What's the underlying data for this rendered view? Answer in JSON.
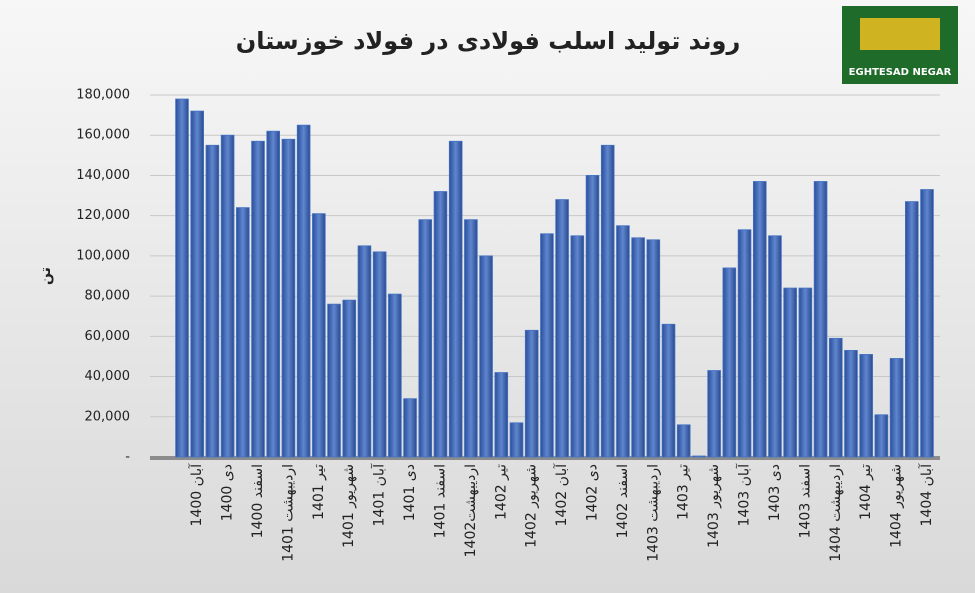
{
  "chart_data": {
    "type": "bar",
    "title": "روند تولید اسلب فولادی در فولاد خوزستان",
    "y_label": "تن",
    "logo": "EGHTESAD NEGAR",
    "categories": [
      null,
      "آبان 1400",
      null,
      "دی 1400",
      null,
      "اسفند 1400",
      null,
      "اردیبهشت 1401",
      null,
      "تیر 1401",
      null,
      "شهریور 1401",
      null,
      "آبان 1401",
      null,
      "دی 1401",
      null,
      "اسفند 1401",
      null,
      "اردیبهشت1402",
      null,
      "تیر 1402",
      null,
      "شهریور 1402",
      null,
      "آبان 1402",
      null,
      "دی 1402",
      null,
      "اسفند 1402",
      null,
      "اردیبهشت 1403",
      null,
      "تیر 1403",
      null,
      "شهریور 1403",
      null,
      "آبان 1403",
      null,
      "دی 1403",
      null,
      "اسفند 1403",
      null,
      "اردیبهشت 1404",
      null,
      "تیر 1404",
      null,
      "شهریور 1404",
      null,
      "آبان 1404"
    ],
    "values": [
      178000,
      172000,
      155000,
      160000,
      124000,
      157000,
      162000,
      158000,
      165000,
      121000,
      76000,
      78000,
      105000,
      102000,
      81000,
      29000,
      118000,
      132000,
      157000,
      118000,
      100000,
      42000,
      17000,
      63000,
      111000,
      128000,
      110000,
      140000,
      155000,
      115000,
      109000,
      108000,
      66000,
      16000,
      500,
      43000,
      94000,
      113000,
      137000,
      110000,
      84000,
      84000,
      137000,
      59000,
      53000,
      51000,
      21000,
      49000,
      127000,
      133000
    ],
    "color": "#4472c4",
    "ylim": [
      0,
      180000
    ],
    "yticks": [
      {
        "value": 0,
        "label": "-"
      },
      {
        "value": 20000,
        "label": "20,000"
      },
      {
        "value": 40000,
        "label": "40,000"
      },
      {
        "value": 60000,
        "label": "60,000"
      },
      {
        "value": 80000,
        "label": "80,000"
      },
      {
        "value": 100000,
        "label": "100,000"
      },
      {
        "value": 120000,
        "label": "120,000"
      },
      {
        "value": 140000,
        "label": "140,000"
      },
      {
        "value": 160000,
        "label": "160,000"
      },
      {
        "value": 180000,
        "label": "180,000"
      }
    ],
    "grid": true
  }
}
